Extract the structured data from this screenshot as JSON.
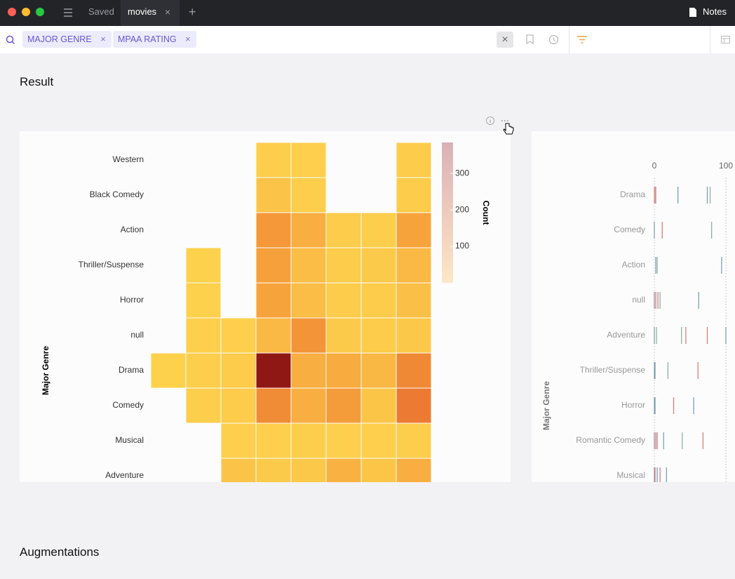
{
  "tabs": [
    "Saved",
    "movies"
  ],
  "notes": "Notes",
  "filters": [
    "MAJOR GENRE",
    "MPAA RATING"
  ],
  "sections": {
    "result": "Result",
    "augmentations": "Augmentations"
  },
  "chart_data": [
    {
      "type": "heatmap",
      "y_label": "Major Genre",
      "legend_title": "Count",
      "rows": [
        "Western",
        "Black Comedy",
        "Action",
        "Thriller/Suspense",
        "Horror",
        "null",
        "Drama",
        "Comedy",
        "Musical",
        "Adventure"
      ],
      "values": [
        [
          null,
          null,
          null,
          15,
          10,
          null,
          null,
          20
        ],
        [
          null,
          null,
          null,
          40,
          15,
          null,
          null,
          20
        ],
        [
          null,
          null,
          null,
          160,
          100,
          20,
          15,
          130
        ],
        [
          null,
          5,
          null,
          140,
          60,
          20,
          25,
          70
        ],
        [
          null,
          5,
          null,
          130,
          60,
          20,
          20,
          55
        ],
        [
          null,
          10,
          10,
          70,
          170,
          25,
          20,
          30
        ],
        [
          5,
          15,
          20,
          380,
          100,
          110,
          75,
          200
        ],
        [
          null,
          15,
          20,
          195,
          100,
          150,
          35,
          240
        ],
        [
          null,
          null,
          10,
          10,
          15,
          10,
          10,
          15
        ],
        [
          null,
          null,
          40,
          25,
          30,
          90,
          35,
          100
        ]
      ],
      "colorlim": [
        0,
        385
      ],
      "colorticks": [
        100,
        200,
        300
      ],
      "color_range": [
        "#fdd34d",
        "#f7a43c",
        "#ea7430",
        "#8b1414"
      ],
      "legend_colors": [
        "#fde7c6",
        "#dbb0b6"
      ]
    },
    {
      "type": "strip",
      "y_label": "Major Genre",
      "xlim": [
        0,
        100
      ],
      "xticks": [
        0,
        100
      ],
      "categories": [
        "Drama",
        "Comedy",
        "Action",
        "null",
        "Adventure",
        "Thriller/Suspense",
        "Horror",
        "Romantic Comedy",
        "Musical"
      ],
      "values": [
        [
          0,
          1,
          2,
          33,
          74,
          78
        ],
        [
          0,
          11,
          80
        ],
        [
          2,
          4,
          94
        ],
        [
          0,
          2,
          5,
          8,
          62
        ],
        [
          0,
          3,
          38,
          44,
          74,
          100
        ],
        [
          0,
          1,
          19,
          61
        ],
        [
          0,
          1,
          27,
          55
        ],
        [
          0,
          2,
          4,
          13,
          39,
          68
        ],
        [
          0,
          1,
          4,
          8,
          17
        ]
      ],
      "colors": [
        [
          "#e08a8a",
          "#d99aa0",
          "#e08a8a",
          "#7f9fb5",
          "#7f9fb5",
          "#8fb0a6"
        ],
        [
          "#7f9fb5",
          "#e07b7b",
          "#8fb0a6"
        ],
        [
          "#7f9fb5",
          "#8fb0a6",
          "#7f9fb5"
        ],
        [
          "#e07b7b",
          "#7f9fb5",
          "#e07b7b",
          "#8fb0a6",
          "#7f9fb5"
        ],
        [
          "#7f9fb5",
          "#8fb0a6",
          "#8fb0a6",
          "#e07b7b",
          "#e07b7b",
          "#7f9fb5"
        ],
        [
          "#7f9fb5",
          "#7f9fb5",
          "#8fb0a6",
          "#e07b7b"
        ],
        [
          "#7f9fb5",
          "#7f9fb5",
          "#e07b7b",
          "#7f9fb5"
        ],
        [
          "#e07b7b",
          "#7f9fb5",
          "#e07b7b",
          "#7f9fb5",
          "#8fb0a6",
          "#e07b7b"
        ],
        [
          "#7f9fb5",
          "#e07b7b",
          "#7f9fb5",
          "#e07b7b",
          "#7f9fb5"
        ]
      ]
    }
  ]
}
